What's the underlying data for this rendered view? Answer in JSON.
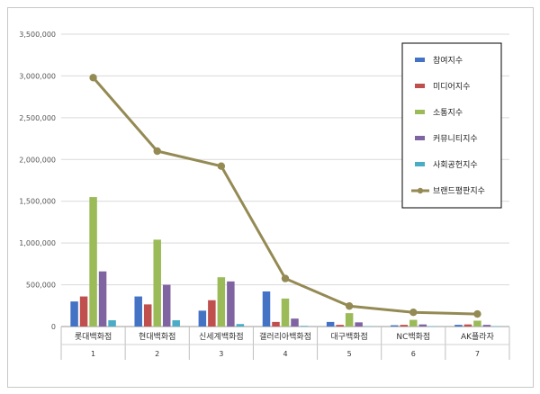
{
  "chart_data": {
    "type": "bar",
    "categories": [
      "롯대백화점",
      "현대백화점",
      "신세계백화점",
      "갤러리아백화점",
      "대구백화점",
      "NC백화점",
      "AK플라자"
    ],
    "category_index": [
      "1",
      "2",
      "3",
      "4",
      "5",
      "6",
      "7"
    ],
    "ylim": [
      0,
      3500000
    ],
    "yticks": [
      "0",
      "500,000",
      "1,000,000",
      "1,500,000",
      "2,000,000",
      "2,500,000",
      "3,000,000",
      "3,500,000"
    ],
    "ytick_values": [
      0,
      500000,
      1000000,
      1500000,
      2000000,
      2500000,
      3000000,
      3500000
    ],
    "grid": true,
    "legend_position": "right",
    "series": [
      {
        "name": "참여지수",
        "type": "bar",
        "color": "#4472C4",
        "values": [
          300000,
          360000,
          190000,
          420000,
          55000,
          15000,
          20000
        ]
      },
      {
        "name": "미디어지수",
        "type": "bar",
        "color": "#C0504D",
        "values": [
          360000,
          265000,
          315000,
          55000,
          20000,
          20000,
          25000
        ]
      },
      {
        "name": "소통지수",
        "type": "bar",
        "color": "#9BBB59",
        "values": [
          1550000,
          1040000,
          590000,
          335000,
          160000,
          80000,
          70000
        ]
      },
      {
        "name": "커뮤니티지수",
        "type": "bar",
        "color": "#8064A2",
        "values": [
          660000,
          500000,
          540000,
          95000,
          50000,
          25000,
          20000
        ]
      },
      {
        "name": "사회공헌지수",
        "type": "bar",
        "color": "#4BACC6",
        "values": [
          75000,
          75000,
          30000,
          8000,
          3000,
          2000,
          2000
        ]
      },
      {
        "name": "브랜드평판지수",
        "type": "line",
        "color": "#948A54",
        "values": [
          2980000,
          2100000,
          1920000,
          575000,
          245000,
          170000,
          150000
        ]
      }
    ]
  }
}
